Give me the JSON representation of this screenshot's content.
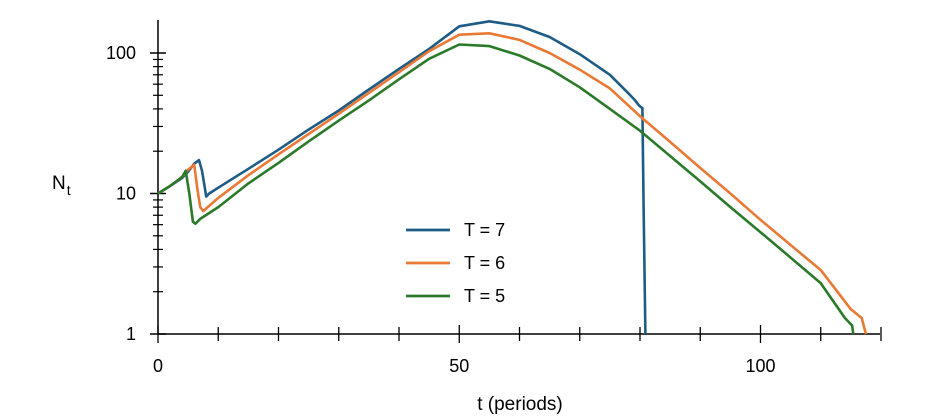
{
  "chart_data": {
    "type": "line",
    "title": "",
    "xlabel": "t  (periods)",
    "ylabel": "N",
    "ylabel_subscript": "t",
    "yscale": "log",
    "xlim": [
      0,
      120
    ],
    "ylim": [
      1,
      180
    ],
    "x_ticks": [
      0,
      50,
      100
    ],
    "y_ticks": [
      1,
      10,
      100
    ],
    "grid": false,
    "legend_position": "center",
    "series": [
      {
        "name": "T = 7",
        "color": "#1f5c85",
        "points": [
          [
            0,
            10
          ],
          [
            2,
            11.3
          ],
          [
            4,
            12.9
          ],
          [
            5,
            14.3
          ],
          [
            6,
            16.3
          ],
          [
            6.8,
            17.3
          ],
          [
            7.3,
            14.5
          ],
          [
            7.8,
            10.8
          ],
          [
            8,
            9.5
          ],
          [
            8.5,
            10
          ],
          [
            10,
            11
          ],
          [
            15,
            15
          ],
          [
            20,
            20.5
          ],
          [
            25,
            28.5
          ],
          [
            30,
            39
          ],
          [
            35,
            55
          ],
          [
            40,
            77
          ],
          [
            45,
            107
          ],
          [
            50,
            155
          ],
          [
            55,
            168
          ],
          [
            60,
            156
          ],
          [
            65,
            130
          ],
          [
            70,
            98
          ],
          [
            75,
            70
          ],
          [
            78,
            52
          ],
          [
            79,
            47
          ],
          [
            79.8,
            42.5
          ],
          [
            80.4,
            40.5
          ],
          [
            80.6,
            8
          ],
          [
            80.8,
            2
          ],
          [
            80.9,
            1
          ]
        ]
      },
      {
        "name": "T = 6",
        "color": "#e87a35",
        "points": [
          [
            0,
            10
          ],
          [
            2,
            11.3
          ],
          [
            4,
            13.1
          ],
          [
            5,
            14.8
          ],
          [
            6,
            16
          ],
          [
            6.5,
            11
          ],
          [
            7,
            8
          ],
          [
            7.5,
            7.5
          ],
          [
            10,
            9.3
          ],
          [
            15,
            13.5
          ],
          [
            20,
            19
          ],
          [
            25,
            26.5
          ],
          [
            30,
            37
          ],
          [
            35,
            52
          ],
          [
            40,
            73
          ],
          [
            45,
            103
          ],
          [
            50,
            135
          ],
          [
            55,
            138
          ],
          [
            60,
            124
          ],
          [
            65,
            100
          ],
          [
            70,
            76
          ],
          [
            75,
            56
          ],
          [
            80,
            35.5
          ],
          [
            85,
            23.3
          ],
          [
            90,
            15.2
          ],
          [
            95,
            10
          ],
          [
            100,
            6.5
          ],
          [
            105,
            4.3
          ],
          [
            110,
            2.85
          ],
          [
            115,
            1.5
          ],
          [
            116.8,
            1.3
          ],
          [
            117.5,
            1
          ]
        ]
      },
      {
        "name": "T = 5",
        "color": "#2a7a2a",
        "points": [
          [
            0,
            10
          ],
          [
            2,
            11.3
          ],
          [
            4,
            13.1
          ],
          [
            4.6,
            14.5
          ],
          [
            5.2,
            10
          ],
          [
            5.8,
            6.3
          ],
          [
            6.2,
            6.1
          ],
          [
            7,
            6.6
          ],
          [
            10,
            8
          ],
          [
            15,
            11.8
          ],
          [
            20,
            16.5
          ],
          [
            25,
            23.5
          ],
          [
            30,
            33
          ],
          [
            35,
            46
          ],
          [
            40,
            65
          ],
          [
            45,
            91
          ],
          [
            50,
            115
          ],
          [
            55,
            112
          ],
          [
            60,
            96
          ],
          [
            65,
            77
          ],
          [
            70,
            57
          ],
          [
            75,
            40
          ],
          [
            80,
            28
          ],
          [
            85,
            18.5
          ],
          [
            90,
            12.2
          ],
          [
            95,
            8
          ],
          [
            100,
            5.3
          ],
          [
            105,
            3.5
          ],
          [
            110,
            2.3
          ],
          [
            114,
            1.3
          ],
          [
            115.2,
            1.15
          ],
          [
            115.4,
            1
          ]
        ]
      }
    ]
  }
}
